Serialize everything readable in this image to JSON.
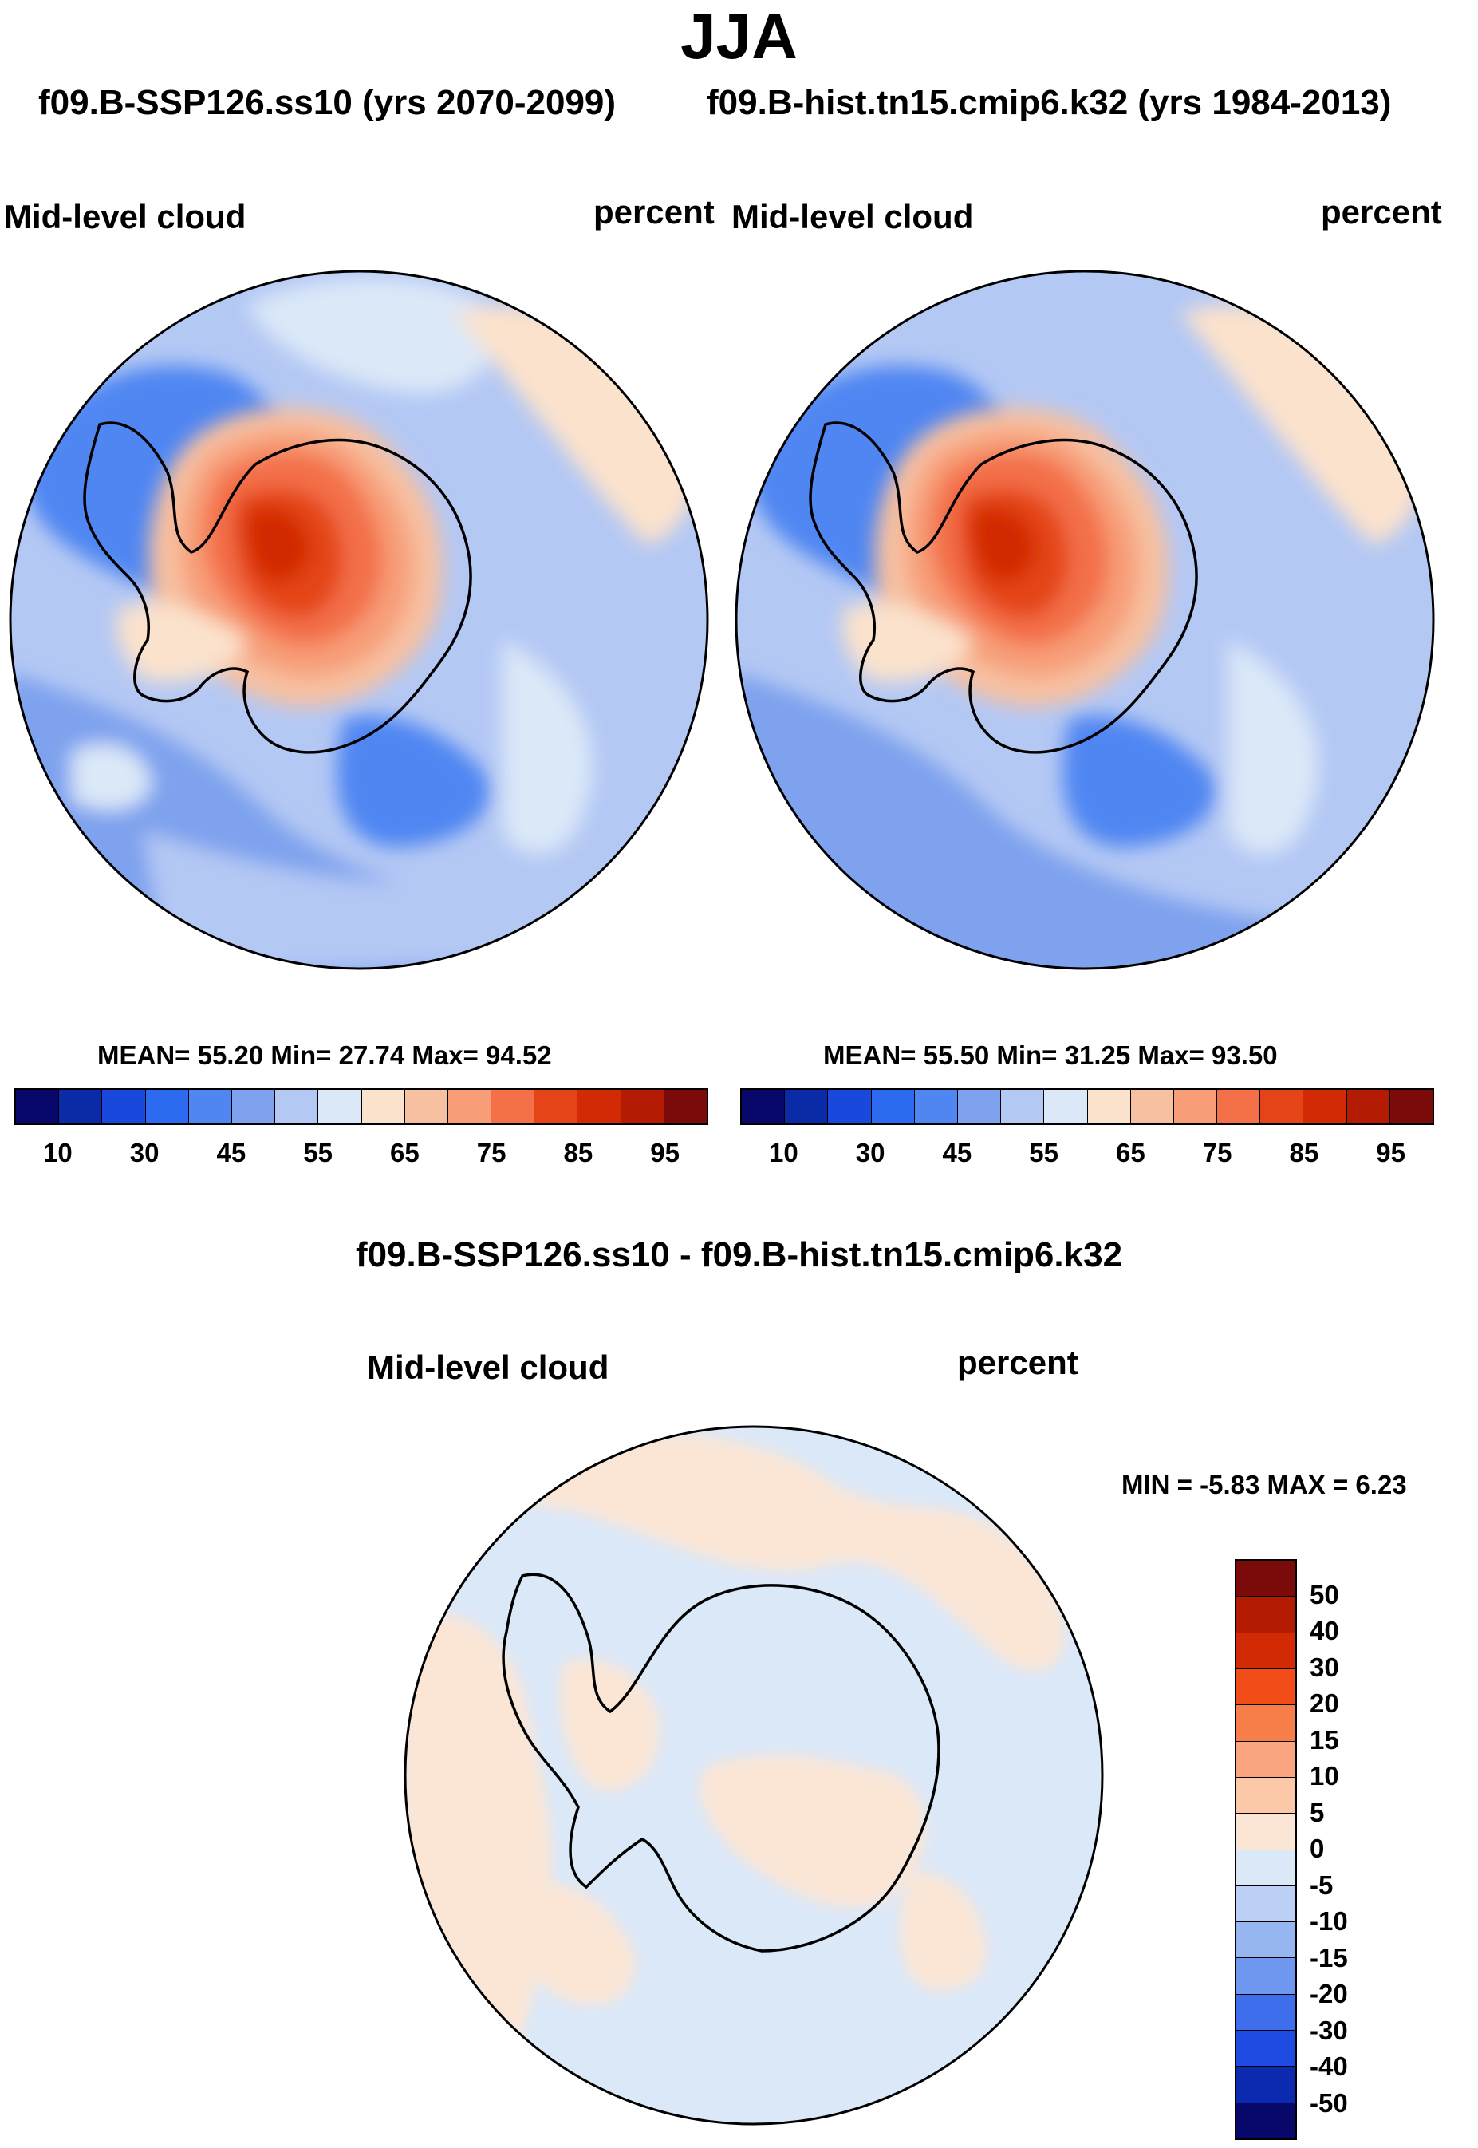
{
  "figure": {
    "season": "JJA",
    "subtitle_left": "f09.B-SSP126.ss10 (yrs 2070-2099)",
    "subtitle_right": "f09.B-hist.tn15.cmip6.k32 (yrs 1984-2013)"
  },
  "panels": [
    {
      "variable": "Mid-level cloud",
      "units": "percent",
      "stats": "MEAN=  55.20  Min=  27.74  Max=  94.52"
    },
    {
      "variable": "Mid-level cloud",
      "units": "percent",
      "stats": "MEAN=  55.50  Min=  31.25  Max=  93.50"
    }
  ],
  "abs_colorbar": {
    "colors": [
      "#08086b",
      "#0a2aa8",
      "#1848dc",
      "#2c6af0",
      "#4f86f2",
      "#7ea2ee",
      "#b4c8f4",
      "#dbe8f8",
      "#fbe2cc",
      "#f7c0a0",
      "#f79e78",
      "#f37048",
      "#e44418",
      "#d22a05",
      "#b31c02",
      "#7b0a0a"
    ],
    "ticks": [
      "10",
      "30",
      "45",
      "55",
      "65",
      "75",
      "85",
      "95"
    ]
  },
  "diff_panel": {
    "title": "f09.B-SSP126.ss10 - f09.B-hist.tn15.cmip6.k32",
    "variable": "Mid-level cloud",
    "units": "percent",
    "stats": "MIN =  -5.83 MAX =   6.23"
  },
  "diff_colorbar": {
    "colors": [
      "#7b0a0a",
      "#b31c02",
      "#d22a05",
      "#f24c18",
      "#f77e48",
      "#f9a680",
      "#fbc8a8",
      "#fbe6d6",
      "#dbe8f8",
      "#bcd0f6",
      "#96b6f2",
      "#6e98f0",
      "#3e6eec",
      "#1e4ce0",
      "#0b2ab0",
      "#08086b"
    ],
    "ticks": [
      "50",
      "40",
      "30",
      "20",
      "15",
      "10",
      "5",
      "0",
      "-5",
      "-10",
      "-15",
      "-20",
      "-30",
      "-40",
      "-50"
    ]
  },
  "map_colors": {
    "ocean_light": "#b4c8f4",
    "ocean_mid": "#7ea2ee",
    "ocean_pale": "#dbe8f8",
    "deep_blue": "#4f86f2",
    "peach": "#fbe2cc",
    "salmon": "#f7c0a0",
    "orange": "#f79e78",
    "red": "#f37048",
    "darkred": "#e44418",
    "core": "#d22a05",
    "diff_bg": "#dbe8f8",
    "diff_pos": "#fbe6d6"
  }
}
